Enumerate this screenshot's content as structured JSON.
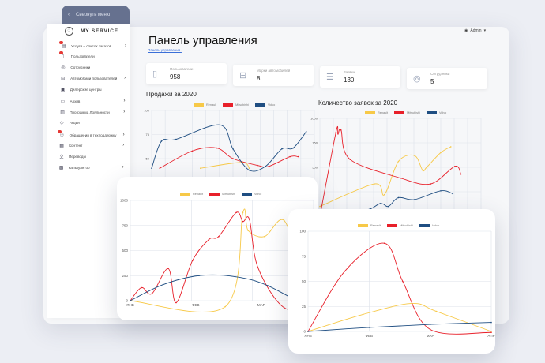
{
  "sidebar": {
    "collapse_label": "Свернуть меню",
    "logo_text": "MY SERVICE",
    "items": [
      {
        "label": "Услуги – список заказов",
        "icon": "orders-icon",
        "badge": true,
        "chevron": true
      },
      {
        "label": "Пользователи",
        "icon": "user-doc-icon",
        "badge": true,
        "chevron": false
      },
      {
        "label": "Сотрудники",
        "icon": "staff-icon",
        "badge": false,
        "chevron": false
      },
      {
        "label": "Автомобили пользователей",
        "icon": "car-icon",
        "badge": false,
        "chevron": true
      },
      {
        "label": "Дилерские центры",
        "icon": "dealer-icon",
        "badge": false,
        "chevron": false
      },
      {
        "label": "Архив",
        "icon": "archive-icon",
        "badge": false,
        "chevron": true
      },
      {
        "label": "Программа Лояльности",
        "icon": "loyalty-icon",
        "badge": false,
        "chevron": true
      },
      {
        "label": "Акции",
        "icon": "tag-icon",
        "badge": false,
        "chevron": false
      },
      {
        "label": "Обращения в техподдержку",
        "icon": "support-icon",
        "badge": true,
        "chevron": true
      },
      {
        "label": "Контент",
        "icon": "content-icon",
        "badge": false,
        "chevron": true
      },
      {
        "label": "Переводы",
        "icon": "translate-icon",
        "badge": false,
        "chevron": false
      },
      {
        "label": "Калькулятор",
        "icon": "calculator-icon",
        "badge": false,
        "chevron": true
      }
    ]
  },
  "header": {
    "title": "Панель управления",
    "breadcrumb": "Панель управления",
    "breadcrumb_sep": "/",
    "user": "Admin"
  },
  "stats": [
    {
      "label": "Пользователи",
      "value": "958",
      "icon": "user-doc-icon"
    },
    {
      "label": "Марки автомобилей",
      "value": "8",
      "icon": "car-icon"
    },
    {
      "label": "Заявки",
      "value": "130",
      "icon": "list-check-icon"
    },
    {
      "label": "Сотрудники",
      "value": "5",
      "icon": "staff-icon"
    }
  ],
  "colors": {
    "renault": "#f7c948",
    "mitsubishi": "#e8202a",
    "volvo": "#1f4e82",
    "sidebar_header": "#66718f"
  },
  "chart_data": [
    {
      "type": "line",
      "title": "Продажи за 2020",
      "ylim": [
        0,
        100
      ],
      "yticks": [
        "100",
        "75",
        "50"
      ],
      "xlabels": [],
      "xrange": [
        0,
        10
      ],
      "series": [
        {
          "name": "Renault",
          "points": [
            [
              3,
              40
            ],
            [
              5.5,
              46
            ],
            [
              6,
              40
            ]
          ]
        },
        {
          "name": "Mitsubishi",
          "points": [
            [
              0.5,
              40
            ],
            [
              2.5,
              58
            ],
            [
              4,
              61
            ],
            [
              5,
              50
            ],
            [
              6.5,
              43
            ],
            [
              7.2,
              42
            ],
            [
              8.5,
              52
            ],
            [
              9,
              52
            ]
          ]
        },
        {
          "name": "Volvo",
          "points": [
            [
              0,
              40
            ],
            [
              0.6,
              68
            ],
            [
              1.5,
              70
            ],
            [
              4.2,
              85
            ],
            [
              5,
              60
            ],
            [
              6,
              38
            ],
            [
              7,
              42
            ],
            [
              8,
              60
            ],
            [
              8.7,
              61
            ],
            [
              9.5,
              78
            ]
          ]
        }
      ]
    },
    {
      "type": "line",
      "title": "Количество заявок за 2020",
      "ylim": [
        0,
        1000
      ],
      "yticks": [
        "1000",
        "750",
        "500",
        "250"
      ],
      "xlabels": [],
      "xrange": [
        0,
        8
      ],
      "series": [
        {
          "name": "Renault",
          "points": [
            [
              0,
              100
            ],
            [
              2.7,
              330
            ],
            [
              3.2,
              220
            ],
            [
              3.9,
              560
            ],
            [
              4.7,
              620
            ],
            [
              5.1,
              470
            ],
            [
              5.3,
              500
            ],
            [
              6,
              650
            ],
            [
              6.5,
              710
            ]
          ]
        },
        {
          "name": "Mitsubishi",
          "points": [
            [
              0,
              0
            ],
            [
              0.8,
              860
            ],
            [
              0.9,
              840
            ],
            [
              1.05,
              880
            ],
            [
              1.5,
              580
            ],
            [
              4,
              390
            ],
            [
              5.5,
              330
            ],
            [
              6.7,
              510
            ],
            [
              7,
              430
            ]
          ]
        },
        {
          "name": "Volvo",
          "points": [
            [
              0,
              60
            ],
            [
              2.2,
              60
            ],
            [
              3,
              130
            ],
            [
              3.4,
              100
            ],
            [
              3.9,
              190
            ],
            [
              4.7,
              170
            ],
            [
              6,
              260
            ],
            [
              6.6,
              230
            ]
          ]
        }
      ]
    },
    {
      "type": "line",
      "title": "",
      "ylim": [
        0,
        1000
      ],
      "yticks": [
        "1000",
        "750",
        "500",
        "250",
        "0"
      ],
      "xlabels": [
        "ЯНВ",
        "ФЕВ",
        "МАР"
      ],
      "xrange": [
        0,
        2.8
      ],
      "series": [
        {
          "name": "Renault",
          "points": [
            [
              0,
              0
            ],
            [
              1.45,
              -60
            ],
            [
              1.72,
              880
            ],
            [
              1.8,
              700
            ],
            [
              2.05,
              640
            ],
            [
              2.35,
              800
            ],
            [
              2.6,
              300
            ],
            [
              2.8,
              80
            ]
          ]
        },
        {
          "name": "Mitsubishi",
          "points": [
            [
              0,
              0
            ],
            [
              0.17,
              130
            ],
            [
              0.33,
              70
            ],
            [
              0.58,
              320
            ],
            [
              0.7,
              -20
            ],
            [
              0.95,
              400
            ],
            [
              1.2,
              610
            ],
            [
              1.35,
              640
            ],
            [
              1.62,
              880
            ],
            [
              1.72,
              790
            ],
            [
              1.82,
              810
            ],
            [
              1.95,
              330
            ],
            [
              2.35,
              -70
            ],
            [
              2.8,
              -50
            ]
          ]
        },
        {
          "name": "Volvo",
          "points": [
            [
              0,
              0
            ],
            [
              0.5,
              160
            ],
            [
              1.05,
              250
            ],
            [
              1.6,
              240
            ],
            [
              2.1,
              150
            ],
            [
              2.8,
              -100
            ]
          ]
        }
      ]
    },
    {
      "type": "line",
      "title": "",
      "ylim": [
        0,
        100
      ],
      "yticks": [
        "100",
        "75",
        "50",
        "25",
        "0"
      ],
      "xlabels": [
        "ЯНВ",
        "ФЕВ",
        "МАР",
        "АПР"
      ],
      "xrange": [
        0,
        3
      ],
      "series": [
        {
          "name": "Renault",
          "points": [
            [
              0,
              0
            ],
            [
              0.9,
              17
            ],
            [
              1.7,
              28
            ],
            [
              2.1,
              20
            ],
            [
              3,
              0
            ]
          ]
        },
        {
          "name": "Mitsubishi",
          "points": [
            [
              0,
              0
            ],
            [
              0.6,
              60
            ],
            [
              1.25,
              88
            ],
            [
              1.55,
              50
            ],
            [
              2,
              2
            ],
            [
              3,
              -1
            ]
          ]
        },
        {
          "name": "Volvo",
          "points": [
            [
              0,
              0
            ],
            [
              1,
              4
            ],
            [
              2,
              7
            ],
            [
              3,
              9
            ]
          ]
        }
      ]
    }
  ],
  "legend": [
    "Renault",
    "Mitsubishi",
    "Volvo"
  ]
}
